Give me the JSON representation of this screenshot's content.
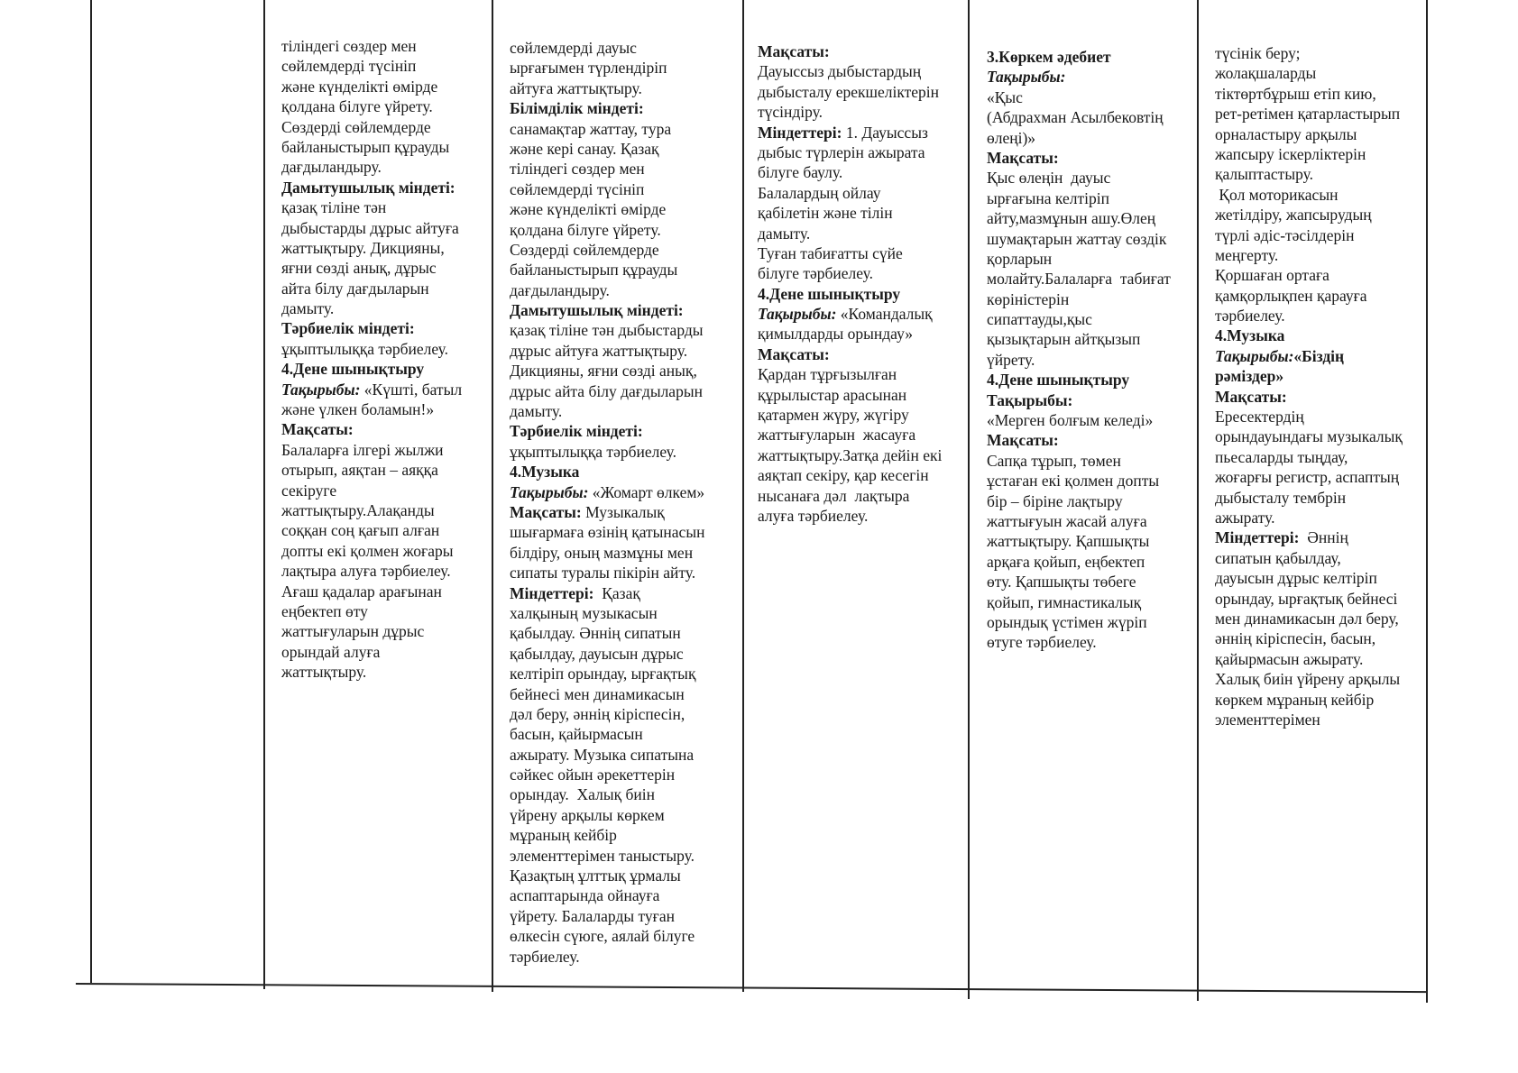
{
  "table": {
    "columns": [
      {
        "lines": [
          [
            "тіліндегі сөздер мен"
          ],
          [
            "сөйлемдерді түсініп"
          ],
          [
            "және күнделікті өмірде"
          ],
          [
            "қолдана білуге үйрету."
          ],
          [
            "Сөздерді сөйлемдерде"
          ],
          [
            "байланыстырып құрауды"
          ],
          [
            "дағдыландыру."
          ],
          [
            {
              "b": "Дамытушылық міндеті:"
            }
          ],
          [
            "қазақ тіліне тән"
          ],
          [
            "дыбыстарды дұрыс айтуға"
          ],
          [
            "жаттықтыру. Дикцияны,"
          ],
          [
            "яғни сөзді анық, дұрыс"
          ],
          [
            "айта білу дағдыларын"
          ],
          [
            "дамыту."
          ],
          [
            {
              "b": "Тәрбиелік міндеті:"
            }
          ],
          [
            "ұқыптылыққа тәрбиелеу."
          ],
          [
            {
              "b": "4.Дене шынықтыру"
            }
          ],
          [
            {
              "bi": "Тақырыбы:"
            },
            " «Күшті, батыл"
          ],
          [
            "және үлкен боламын!»"
          ],
          [
            {
              "b": "Мақсаты:"
            }
          ],
          [
            "Балаларға ілгері жылжи"
          ],
          [
            "отырып, аяқтан – аяққа"
          ],
          [
            "секіруге"
          ],
          [
            "жаттықтыру.Алақанды"
          ],
          [
            "соққан соң қағып алған"
          ],
          [
            "допты екі қолмен жоғары"
          ],
          [
            "лақтыра алуға тәрбиелеу."
          ],
          [
            "Ағаш қадалар арағынан"
          ],
          [
            "еңбектеп өту"
          ],
          [
            "жаттығуларын дұрыс"
          ],
          [
            "орындай алуға"
          ],
          [
            "жаттықтыру."
          ]
        ]
      },
      {
        "lines": [
          [
            "сөйлемдерді дауыс"
          ],
          [
            "ырғағымен түрлендіріп"
          ],
          [
            "айтуға жаттықтыру."
          ],
          [
            {
              "b": "Білімділік міндеті:"
            }
          ],
          [
            "санамақтар жаттау, тура"
          ],
          [
            "және кері санау. Қазақ"
          ],
          [
            "тіліндегі сөздер мен"
          ],
          [
            "сөйлемдерді түсініп"
          ],
          [
            "және күнделікті өмірде"
          ],
          [
            "қолдана білуге үйрету."
          ],
          [
            "Сөздерді сөйлемдерде"
          ],
          [
            "байланыстырып құрауды"
          ],
          [
            "дағдыландыру."
          ],
          [
            {
              "b": "Дамытушылық міндеті:"
            }
          ],
          [
            "қазақ тіліне тән дыбыстарды"
          ],
          [
            "дұрыс айтуға жаттықтыру."
          ],
          [
            "Дикцияны, яғни сөзді анық,"
          ],
          [
            "дұрыс айта білу дағдыларын"
          ],
          [
            "дамыту."
          ],
          [
            {
              "b": "Тәрбиелік міндеті:"
            }
          ],
          [
            "ұқыптылыққа тәрбиелеу."
          ],
          [
            {
              "b": "4.Музыка"
            }
          ],
          [
            {
              "bi": "Тақырыбы:"
            },
            " «Жомарт өлкем»"
          ],
          [
            {
              "b": "Мақсаты:"
            },
            " Музыкалық"
          ],
          [
            "шығармаға өзінің қатынасын"
          ],
          [
            "білдіру, оның мазмұны мен"
          ],
          [
            "сипаты туралы пікірін айту."
          ],
          [
            {
              "b": "Міндеттері:"
            },
            "  Қазақ"
          ],
          [
            "халқының музыкасын"
          ],
          [
            "қабылдау. Әннің сипатын"
          ],
          [
            "қабылдау, дауысын дұрыс"
          ],
          [
            "келтіріп орындау, ырғақтық"
          ],
          [
            "бейнесі мен динамикасын"
          ],
          [
            "дәл беру, әннің кіріспесін,"
          ],
          [
            "басын, қайырмасын"
          ],
          [
            "ажырату. Музыка сипатына"
          ],
          [
            "сәйкес ойын әрекеттерін"
          ],
          [
            "орындау.  Халық биін"
          ],
          [
            "үйрену арқылы көркем"
          ],
          [
            "мұраның кейбір"
          ],
          [
            "элементтерімен таныстыру."
          ],
          [
            "Қазақтың ұлттық ұрмалы"
          ],
          [
            "аспаптарында ойнауға"
          ],
          [
            "үйрету. Балаларды туған"
          ],
          [
            "өлкесін сүюге, аялай білуге"
          ],
          [
            "тәрбиелеу."
          ]
        ]
      },
      {
        "lines": [
          [
            {
              "b": "Мақсаты:"
            }
          ],
          [
            "Дауыссыз дыбыстардың"
          ],
          [
            "дыбысталу ерекшеліктерін"
          ],
          [
            "түсіндіру."
          ],
          [
            {
              "b": "Міндеттері:"
            },
            " 1. Дауыссыз"
          ],
          [
            "дыбыс түрлерін ажырата"
          ],
          [
            "білуге баулу."
          ],
          [
            "Балалардың ойлау"
          ],
          [
            "қабілетін және тілін"
          ],
          [
            "дамыту."
          ],
          [
            "Туған табиғатты сүйе"
          ],
          [
            "білуге тәрбиелеу."
          ],
          [
            {
              "b": "4.Дене шынықтыру"
            }
          ],
          [
            {
              "bi": "Тақырыбы:"
            },
            " «Командалық"
          ],
          [
            "қимылдарды орындау»"
          ],
          [
            {
              "b": "Мақсаты:"
            }
          ],
          [
            "Қардан тұрғызылған"
          ],
          [
            "құрылыстар арасынан"
          ],
          [
            "қатармен жүру, жүгіру"
          ],
          [
            "жаттығуларын  жасауға"
          ],
          [
            "жаттықтыру.Затқа дейін екі"
          ],
          [
            "аяқтап секіру, қар кесегін"
          ],
          [
            "нысанаға дәл  лақтыра"
          ],
          [
            "алуға тәрбиелеу."
          ]
        ]
      },
      {
        "lines": [
          [
            {
              "b": "3.Көркем әдебиет"
            }
          ],
          [
            {
              "bi": "Тақырыбы:"
            }
          ],
          [
            "«Қыс"
          ],
          [
            "(Абдрахман Асылбековтің"
          ],
          [
            "өлеңі)»"
          ],
          [
            {
              "b": "Мақсаты:"
            }
          ],
          [
            "Қыс өлеңін  дауыс"
          ],
          [
            "ырғағына келтіріп"
          ],
          [
            "айту,мазмұнын ашу.Өлең"
          ],
          [
            "шумақтарын жаттау сөздік"
          ],
          [
            "қорларын"
          ],
          [
            "молайту.Балаларға  табиғат"
          ],
          [
            "көріністерін"
          ],
          [
            "сипаттауды,қыс"
          ],
          [
            "қызықтарын айтқызып"
          ],
          [
            "үйрету."
          ],
          [
            {
              "b": "4.Дене шынықтыру"
            }
          ],
          [
            {
              "b": "Тақырыбы:"
            }
          ],
          [
            "«Мерген болғым келеді»"
          ],
          [
            {
              "b": "Мақсаты:"
            }
          ],
          [
            "Сапқа тұрып, төмен"
          ],
          [
            "ұстаған екі қолмен допты"
          ],
          [
            "бір – біріне лақтыру"
          ],
          [
            "жаттығуын жасай алуға"
          ],
          [
            "жаттықтыру. Қапшықты"
          ],
          [
            "арқаға қойып, еңбектеп"
          ],
          [
            "өту. Қапшықты төбеге"
          ],
          [
            "қойып, гимнастикалық"
          ],
          [
            "орындық үстімен жүріп"
          ],
          [
            "өтуге тәрбиелеу."
          ]
        ]
      },
      {
        "lines": [
          [
            "түсінік беру;"
          ],
          [
            "жолақшаларды"
          ],
          [
            "тіктөртбұрыш етіп кию,"
          ],
          [
            "рет-ретімен қатарластырып"
          ],
          [
            "орналастыру арқылы"
          ],
          [
            "жапсыру іскерліктерін"
          ],
          [
            "қалыптастыру."
          ],
          [
            " Қол моторикасын"
          ],
          [
            "жетілдіру, жапсырудың"
          ],
          [
            "түрлі әдіс-тәсілдерін"
          ],
          [
            "меңгерту."
          ],
          [
            "Қоршаған ортаға"
          ],
          [
            "қамқорлықпен қарауға"
          ],
          [
            "тәрбиелеу."
          ],
          [
            {
              "b": "4.Музыка"
            }
          ],
          [
            {
              "bi": "Тақырыбы:"
            },
            {
              "b": "«Біздің"
            }
          ],
          [
            {
              "b": "рәміздер»"
            }
          ],
          [
            {
              "b": "Мақсаты:"
            }
          ],
          [
            "Ересектердің"
          ],
          [
            "орындауындағы музыкалық"
          ],
          [
            "пьесаларды тыңдау,"
          ],
          [
            "жоғарғы регистр, аспаптың"
          ],
          [
            "дыбысталу тембрін"
          ],
          [
            "ажырату."
          ],
          [
            {
              "b": "Міндеттері:"
            },
            "  Әннің"
          ],
          [
            "сипатын қабылдау,"
          ],
          [
            "дауысын дұрыс келтіріп"
          ],
          [
            "орындау, ырғақтық бейнесі"
          ],
          [
            "мен динамикасын дәл беру,"
          ],
          [
            "әннің кіріспесін, басын,"
          ],
          [
            "қайырмасын ажырату."
          ],
          [
            "Халық биін үйрену арқылы"
          ],
          [
            "көркем мұраның кейбір"
          ],
          [
            "элементтерімен"
          ]
        ]
      }
    ]
  }
}
